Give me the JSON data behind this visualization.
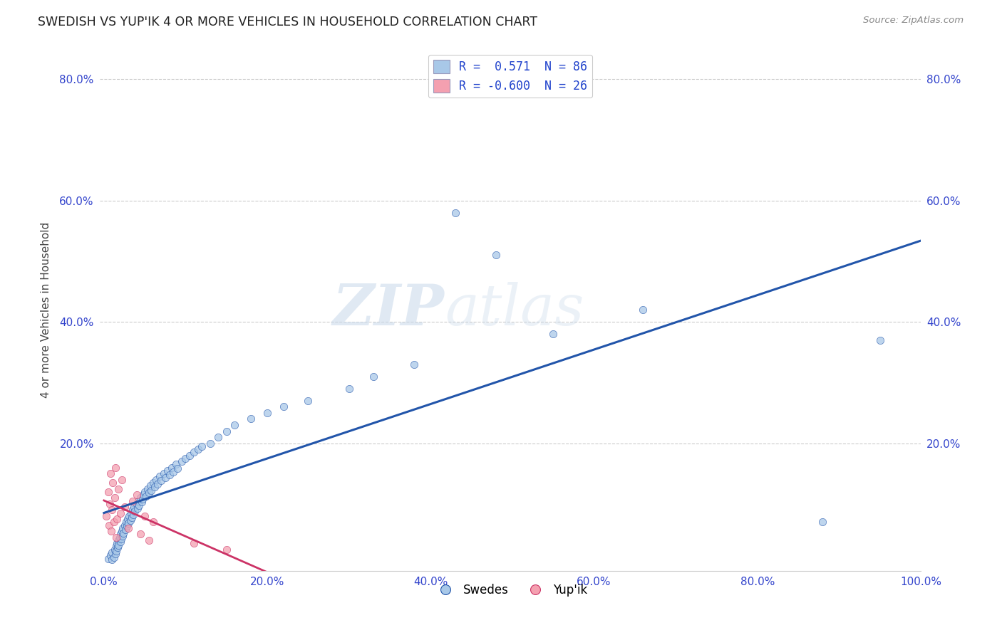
{
  "title": "SWEDISH VS YUP'IK 4 OR MORE VEHICLES IN HOUSEHOLD CORRELATION CHART",
  "source": "Source: ZipAtlas.com",
  "ylabel": "4 or more Vehicles in Household",
  "xlim": [
    -0.005,
    1.0
  ],
  "ylim": [
    -0.01,
    0.85
  ],
  "xtick_labels": [
    "0.0%",
    "20.0%",
    "40.0%",
    "60.0%",
    "80.0%",
    "100.0%"
  ],
  "xtick_vals": [
    0.0,
    0.2,
    0.4,
    0.6,
    0.8,
    1.0
  ],
  "ytick_labels": [
    "20.0%",
    "40.0%",
    "60.0%",
    "80.0%"
  ],
  "ytick_vals": [
    0.2,
    0.4,
    0.6,
    0.8
  ],
  "blue_R": 0.571,
  "blue_N": 86,
  "pink_R": -0.6,
  "pink_N": 26,
  "blue_color": "#a8c8e8",
  "pink_color": "#f4a0b0",
  "blue_line_color": "#2255aa",
  "pink_line_color": "#cc3366",
  "legend_label_blue": "Swedes",
  "legend_label_pink": "Yup'ik",
  "watermark_zip": "ZIP",
  "watermark_atlas": "atlas",
  "blue_scatter_x": [
    0.005,
    0.008,
    0.01,
    0.01,
    0.012,
    0.013,
    0.014,
    0.015,
    0.015,
    0.016,
    0.017,
    0.018,
    0.018,
    0.019,
    0.02,
    0.02,
    0.021,
    0.022,
    0.023,
    0.023,
    0.024,
    0.025,
    0.026,
    0.027,
    0.028,
    0.029,
    0.03,
    0.031,
    0.032,
    0.033,
    0.034,
    0.035,
    0.036,
    0.037,
    0.038,
    0.04,
    0.041,
    0.042,
    0.043,
    0.045,
    0.046,
    0.047,
    0.048,
    0.05,
    0.052,
    0.053,
    0.055,
    0.057,
    0.058,
    0.06,
    0.062,
    0.064,
    0.066,
    0.068,
    0.07,
    0.073,
    0.075,
    0.078,
    0.08,
    0.083,
    0.085,
    0.088,
    0.09,
    0.095,
    0.1,
    0.105,
    0.11,
    0.115,
    0.12,
    0.13,
    0.14,
    0.15,
    0.16,
    0.18,
    0.2,
    0.22,
    0.25,
    0.3,
    0.33,
    0.38,
    0.43,
    0.48,
    0.55,
    0.66,
    0.88,
    0.95
  ],
  "blue_scatter_y": [
    0.01,
    0.015,
    0.008,
    0.02,
    0.012,
    0.025,
    0.018,
    0.03,
    0.022,
    0.035,
    0.028,
    0.04,
    0.032,
    0.045,
    0.038,
    0.05,
    0.042,
    0.055,
    0.047,
    0.06,
    0.052,
    0.065,
    0.058,
    0.07,
    0.063,
    0.075,
    0.068,
    0.08,
    0.073,
    0.085,
    0.078,
    0.09,
    0.082,
    0.095,
    0.088,
    0.1,
    0.093,
    0.105,
    0.098,
    0.11,
    0.103,
    0.108,
    0.115,
    0.12,
    0.113,
    0.125,
    0.118,
    0.13,
    0.122,
    0.135,
    0.128,
    0.14,
    0.133,
    0.145,
    0.138,
    0.15,
    0.143,
    0.155,
    0.148,
    0.16,
    0.153,
    0.165,
    0.158,
    0.17,
    0.175,
    0.18,
    0.185,
    0.19,
    0.195,
    0.2,
    0.21,
    0.22,
    0.23,
    0.24,
    0.25,
    0.26,
    0.27,
    0.29,
    0.31,
    0.33,
    0.58,
    0.51,
    0.38,
    0.42,
    0.07,
    0.37
  ],
  "pink_scatter_x": [
    0.003,
    0.005,
    0.006,
    0.007,
    0.008,
    0.009,
    0.01,
    0.011,
    0.012,
    0.013,
    0.014,
    0.015,
    0.016,
    0.018,
    0.02,
    0.022,
    0.025,
    0.03,
    0.035,
    0.04,
    0.045,
    0.05,
    0.055,
    0.06,
    0.11,
    0.15
  ],
  "pink_scatter_y": [
    0.08,
    0.12,
    0.065,
    0.1,
    0.15,
    0.055,
    0.09,
    0.135,
    0.07,
    0.11,
    0.16,
    0.045,
    0.075,
    0.125,
    0.085,
    0.14,
    0.095,
    0.06,
    0.105,
    0.115,
    0.05,
    0.08,
    0.04,
    0.07,
    0.035,
    0.025
  ]
}
